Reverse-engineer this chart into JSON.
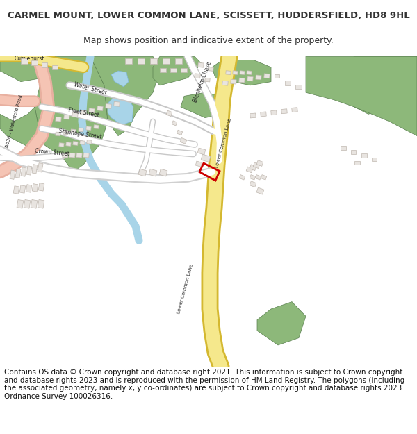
{
  "title_line1": "CARMEL MOUNT, LOWER COMMON LANE, SCISSETT, HUDDERSFIELD, HD8 9HL",
  "title_line2": "Map shows position and indicative extent of the property.",
  "footer_text": "Contains OS data © Crown copyright and database right 2021. This information is subject to Crown copyright and database rights 2023 and is reproduced with the permission of HM Land Registry. The polygons (including the associated geometry, namely x, y co-ordinates) are subject to Crown copyright and database rights 2023 Ordnance Survey 100026316.",
  "bg_color": "#f5f3f0",
  "map_bg": "#f5f3f0",
  "road_yellow": "#f5e88c",
  "road_yellow_border": "#d4b830",
  "road_white": "#ffffff",
  "road_gray": "#c8c8c8",
  "road_pink": "#f0b0a0",
  "green_area": "#8db87a",
  "blue_water": "#a8d4e8",
  "building_fill": "#e8e4e0",
  "building_stroke": "#b0a898",
  "red_outline": "#cc0000",
  "text_color": "#333333",
  "title_fontsize": 9.5,
  "subtitle_fontsize": 9,
  "footer_fontsize": 7.5
}
